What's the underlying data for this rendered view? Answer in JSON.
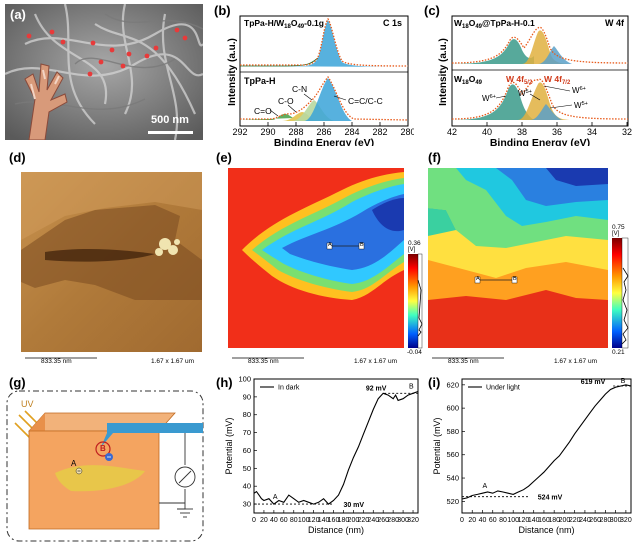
{
  "panels": {
    "a": {
      "label": "(a)",
      "scalebar": "500 nm"
    },
    "b": {
      "label": "(b)",
      "top_title": "TpPa-H/W18O49-0.1g",
      "top_title_parts": [
        "TpPa-H/W",
        "18",
        "O",
        "49",
        "-0.1g"
      ],
      "top_tag": "C 1s",
      "bottom_title": "TpPa-H",
      "peaks": [
        "C=O",
        "C-O",
        "C-N",
        "C=C/C-C"
      ],
      "xlabel": "Binding Energy (eV)",
      "ylabel": "Intensity (a.u.)",
      "xticks": [
        "292",
        "290",
        "288",
        "286",
        "284",
        "282",
        "280"
      ]
    },
    "c": {
      "label": "(c)",
      "top_title_parts": [
        "W",
        "18",
        "O",
        "49",
        "@TpPa-H-0.1"
      ],
      "top_tag": "W 4f",
      "bottom_title_parts": [
        "W",
        "18",
        "O",
        "49"
      ],
      "w4f52": [
        "W 4f",
        "5/2"
      ],
      "w4f72": [
        "W 4f",
        "7/2"
      ],
      "w6": [
        "W",
        "6+"
      ],
      "w5": [
        "W",
        "5+"
      ],
      "xlabel": "Binding Energy (eV)",
      "ylabel": "Intensity (a.u.)",
      "xticks": [
        "42",
        "40",
        "38",
        "36",
        "34",
        "32"
      ]
    },
    "d": {
      "label": "(d)",
      "scale_left": "833.35 nm",
      "scale_right": "1.67 x 1.67 um"
    },
    "e": {
      "label": "(e)",
      "scale_left": "833.35 nm",
      "scale_right": "1.67 x 1.67 um",
      "cbar_max": "0.36",
      "cbar_min": "-0.04",
      "cbar_unit": "[V]",
      "pt_a": "A",
      "pt_b": "B"
    },
    "f": {
      "label": "(f)",
      "scale_left": "833.35 nm",
      "scale_right": "1.67 x 1.67 um",
      "cbar_max": "0.75",
      "cbar_min": "0.21",
      "cbar_unit": "[V]",
      "pt_a": "A",
      "pt_b": "B"
    },
    "g": {
      "label": "(g)",
      "uv": "UV",
      "pt_a": "A",
      "pt_b": "B"
    },
    "h": {
      "label": "(h)",
      "legend": "In dark",
      "ann_high": "92 mV",
      "ann_low": "30 mV",
      "pt_a": "A",
      "pt_b": "B"
    },
    "i": {
      "label": "(i)",
      "legend": "Under light",
      "ann_high": "619 mV",
      "ann_low": "524 mV",
      "pt_a": "A",
      "pt_b": "B"
    }
  },
  "chart_data": [
    {
      "type": "line",
      "panel": "h",
      "xlabel": "Distance (nm)",
      "ylabel": "Potential (mV)",
      "xlim": [
        0,
        330
      ],
      "ylim": [
        25,
        100
      ],
      "xticks": [
        0,
        20,
        40,
        60,
        80,
        100,
        120,
        140,
        160,
        180,
        200,
        220,
        240,
        260,
        280,
        300,
        320
      ],
      "yticks": [
        30,
        40,
        50,
        60,
        70,
        80,
        90,
        100
      ],
      "series": [
        {
          "name": "In dark",
          "x": [
            0,
            5,
            10,
            15,
            20,
            30,
            40,
            50,
            60,
            70,
            80,
            90,
            100,
            110,
            120,
            130,
            140,
            150,
            160,
            170,
            180,
            190,
            200,
            210,
            220,
            230,
            240,
            250,
            260,
            270,
            275,
            280,
            285,
            290,
            300,
            310,
            320,
            330
          ],
          "y": [
            36,
            37,
            35,
            33,
            32,
            33,
            30,
            32,
            31,
            35,
            33,
            31,
            32,
            31,
            30,
            31,
            33,
            30,
            32,
            35,
            41,
            49,
            56,
            62,
            69,
            76,
            83,
            89,
            92,
            91,
            90,
            89,
            91,
            88,
            89,
            91,
            92,
            93
          ]
        }
      ]
    },
    {
      "type": "line",
      "panel": "i",
      "xlabel": "Distance (nm)",
      "ylabel": "Potential (mV)",
      "xlim": [
        0,
        330
      ],
      "ylim": [
        510,
        625
      ],
      "xticks": [
        0,
        20,
        40,
        60,
        80,
        100,
        120,
        140,
        160,
        180,
        200,
        220,
        240,
        260,
        280,
        300,
        320
      ],
      "yticks": [
        520,
        540,
        560,
        580,
        600,
        620
      ],
      "series": [
        {
          "name": "Under light",
          "x": [
            0,
            10,
            20,
            30,
            40,
            50,
            60,
            70,
            80,
            90,
            100,
            110,
            120,
            130,
            140,
            150,
            160,
            170,
            180,
            190,
            200,
            210,
            220,
            230,
            240,
            250,
            260,
            270,
            280,
            290,
            300,
            310,
            320,
            330
          ],
          "y": [
            522,
            523,
            525,
            526,
            527,
            528,
            527,
            529,
            528,
            527,
            526,
            528,
            530,
            533,
            537,
            541,
            545,
            550,
            555,
            559,
            565,
            571,
            578,
            584,
            590,
            596,
            602,
            607,
            612,
            616,
            618,
            619,
            620,
            619
          ]
        }
      ]
    }
  ]
}
